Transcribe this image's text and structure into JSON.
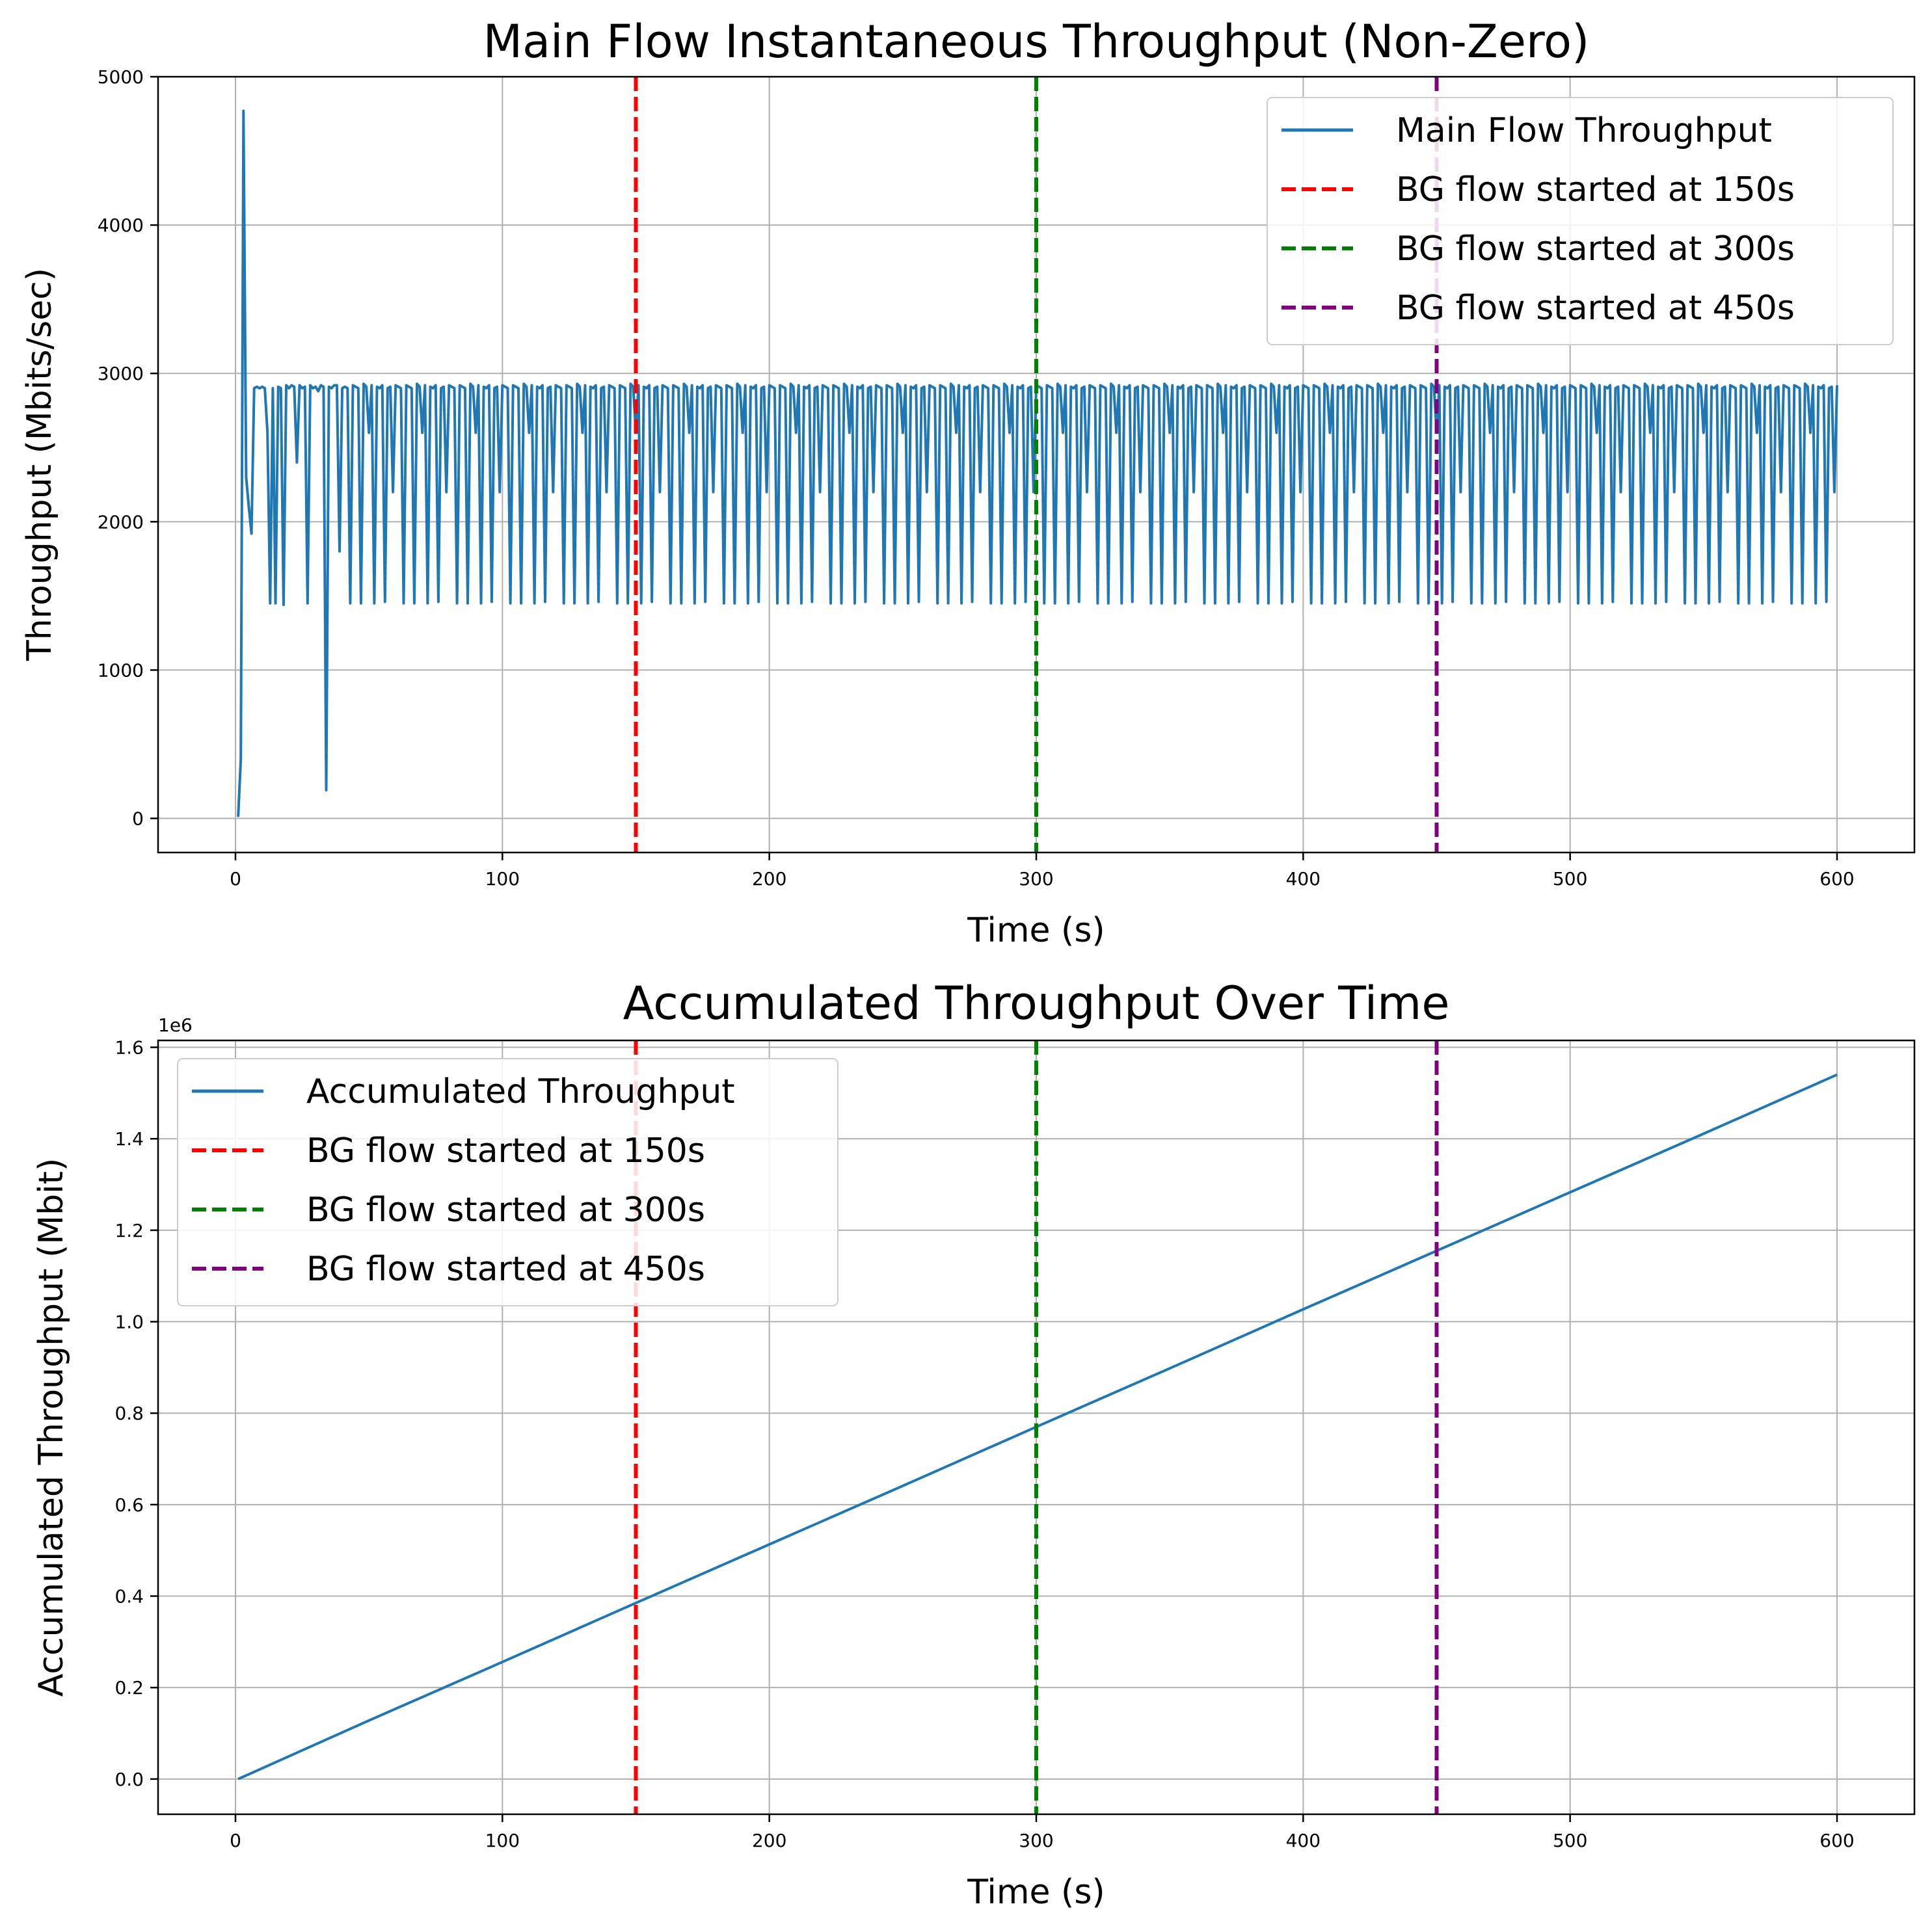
{
  "chart_data": [
    {
      "type": "line",
      "title": "Main Flow Instantaneous Throughput (Non-Zero)",
      "xlabel": "Time (s)",
      "ylabel": "Throughput (Mbits/sec)",
      "xlim": [
        -29,
        629
      ],
      "ylim": [
        -230,
        5000
      ],
      "xticks": [
        0,
        100,
        200,
        300,
        400,
        500,
        600
      ],
      "yticks": [
        0,
        1000,
        2000,
        3000,
        4000,
        5000
      ],
      "grid": true,
      "legend_position": "upper right",
      "series": [
        {
          "name": "Main Flow Throughput",
          "color": "#1f77b4",
          "style": "solid",
          "pattern": {
            "x": [
              1,
              2,
              3,
              4,
              5,
              6,
              7,
              8,
              9,
              10,
              11,
              12,
              13,
              14,
              15,
              16,
              17,
              18,
              19,
              20,
              21,
              22,
              23,
              24,
              25,
              26,
              27,
              28,
              29,
              30,
              31,
              32,
              33,
              34,
              35,
              36,
              37,
              38,
              39,
              40
            ],
            "y": [
              10,
              400,
              4770,
              2300,
              2100,
              1920,
              2900,
              2910,
              2900,
              2910,
              2900,
              2600,
              1450,
              2900,
              1450,
              2910,
              2900,
              1440,
              2920,
              2900,
              2920,
              2910,
              2400,
              2920,
              2900,
              2910,
              1450,
              2920,
              2900,
              2910,
              2880,
              2920,
              2910,
              190,
              2910,
              2900,
              2920,
              2920,
              1800,
              2900
            ],
            "repeat_from": 40,
            "repeat_to": 600,
            "repeat_cycle_values": [
              2910,
              2900,
              1450,
              2920,
              2910,
              2900,
              1450,
              2930,
              2910,
              2600,
              2920,
              1450,
              2910,
              2900,
              2920,
              1460,
              2900,
              2910,
              2200,
              2920
            ]
          }
        }
      ],
      "vlines": [
        {
          "name": "BG flow started at 150s",
          "x": 150,
          "color": "#ff0000"
        },
        {
          "name": "BG flow started at 300s",
          "x": 300,
          "color": "#008000"
        },
        {
          "name": "BG flow started at 450s",
          "x": 450,
          "color": "#800080"
        }
      ]
    },
    {
      "type": "line",
      "title": "Accumulated Throughput Over Time",
      "xlabel": "Time (s)",
      "ylabel": "Accumulated Throughput (Mbit)",
      "offset_text": "1e6",
      "xlim": [
        -29,
        629
      ],
      "ylim": [
        -0.077,
        1.615
      ],
      "xticks": [
        0,
        100,
        200,
        300,
        400,
        500,
        600
      ],
      "yticks": [
        0.0,
        0.2,
        0.4,
        0.6,
        0.8,
        1.0,
        1.2,
        1.4,
        1.6
      ],
      "yticklabels": [
        "0.0",
        "0.2",
        "0.4",
        "0.6",
        "0.8",
        "1.0",
        "1.2",
        "1.4",
        "1.6"
      ],
      "grid": true,
      "legend_position": "upper left",
      "series": [
        {
          "name": "Accumulated Throughput",
          "color": "#1f77b4",
          "style": "solid",
          "x": [
            1,
            50,
            100,
            150,
            200,
            250,
            300,
            350,
            400,
            450,
            500,
            550,
            600
          ],
          "y": [
            0.0,
            0.128,
            0.256,
            0.385,
            0.513,
            0.641,
            0.77,
            0.898,
            1.027,
            1.155,
            1.283,
            1.411,
            1.54
          ]
        }
      ],
      "vlines": [
        {
          "name": "BG flow started at 150s",
          "x": 150,
          "color": "#ff0000"
        },
        {
          "name": "BG flow started at 300s",
          "x": 300,
          "color": "#008000"
        },
        {
          "name": "BG flow started at 450s",
          "x": 450,
          "color": "#800080"
        }
      ]
    }
  ]
}
